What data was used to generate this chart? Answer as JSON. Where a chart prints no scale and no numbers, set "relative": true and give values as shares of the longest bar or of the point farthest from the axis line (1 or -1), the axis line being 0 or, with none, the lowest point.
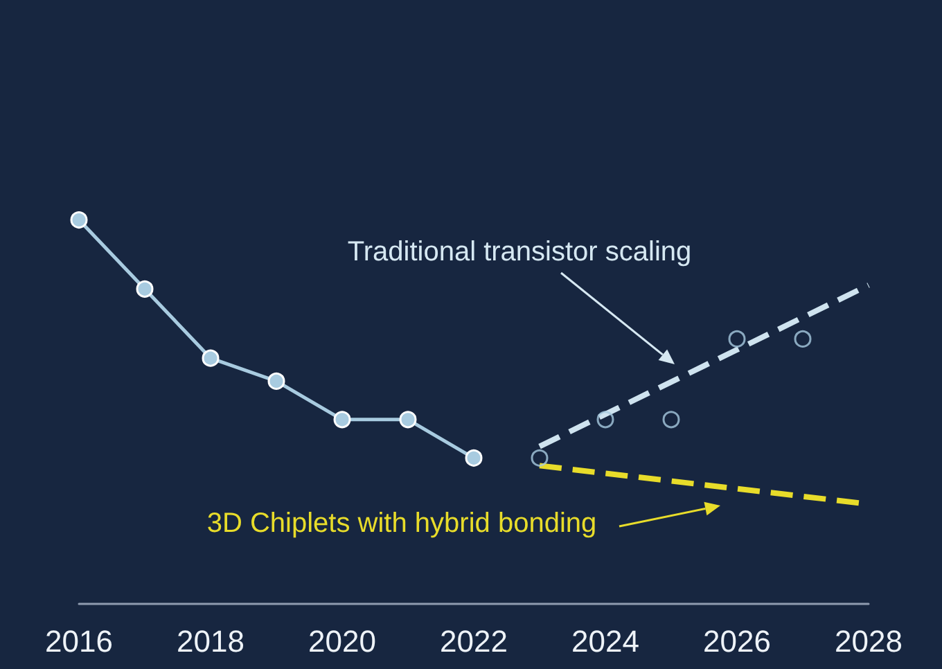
{
  "chart_data": {
    "type": "line",
    "relative": true,
    "x": [
      2016,
      2017,
      2018,
      2019,
      2020,
      2021,
      2022
    ],
    "series": [
      {
        "color": "#a8cbe0",
        "marker": "circle",
        "line_style": "solid",
        "values": [
          1,
          0.82,
          0.64,
          0.58,
          0.48,
          0.48,
          0.38
        ]
      },
      {
        "type": "scatter",
        "color": "#a8cbe0",
        "marker": "circle",
        "x": [
          2023,
          2024,
          2025,
          2026,
          2027
        ],
        "values": [
          0.38,
          0.48,
          0.48,
          0.69,
          0.69
        ]
      },
      {
        "type": "line",
        "color": "#cfe3ef",
        "marker": "none",
        "line_style": "dashed",
        "x": [
          2023,
          2028
        ],
        "values": [
          0.41,
          0.83
        ]
      },
      {
        "type": "line",
        "color": "#e8dc2a",
        "marker": "none",
        "line_style": "dashed",
        "x": [
          2023,
          2028
        ],
        "values": [
          0.36,
          0.26
        ]
      }
    ],
    "xlim": [
      2016,
      2028
    ],
    "xticks": [
      2016,
      2018,
      2020,
      2022,
      2024,
      2026,
      2028
    ],
    "grid": false,
    "annotations": [
      "Traditional transistor scaling",
      "3D Chiplets with hybrid bonding"
    ]
  }
}
